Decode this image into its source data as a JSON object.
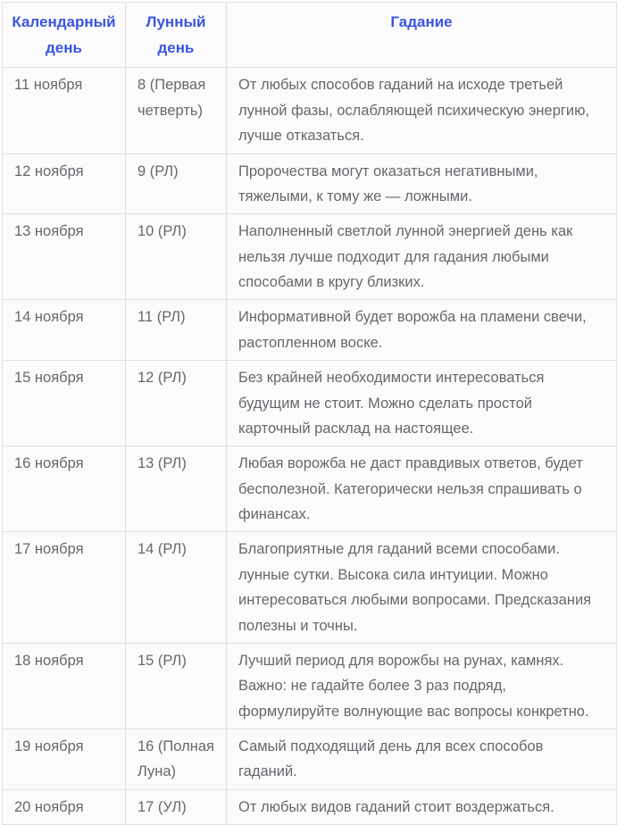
{
  "table": {
    "headers": {
      "calendar_day": "Календарный день",
      "moon_day": "Лунный день",
      "divination": "Гадание"
    },
    "rows": [
      {
        "date": "11 ноября",
        "moon_day": "8 (Первая четверть)",
        "divination": "От любых способов гаданий на исходе третьей лунной фазы, ослабляющей психическую энергию, лучше отказаться."
      },
      {
        "date": "12 ноября",
        "moon_day": "9 (РЛ)",
        "divination": "Пророчества могут оказаться негативными, тяжелыми, к тому же — ложными."
      },
      {
        "date": "13 ноября",
        "moon_day": "10 (РЛ)",
        "divination": "Наполненный светлой лунной энергией день как нельзя лучше подходит для гадания любыми способами в кругу близких."
      },
      {
        "date": "14 ноября",
        "moon_day": "11 (РЛ)",
        "divination": "Информативной будет ворожба на пламени свечи, растопленном воске."
      },
      {
        "date": "15 ноября",
        "moon_day": "12 (РЛ)",
        "divination": "Без крайней необходимости интересоваться будущим не стоит. Можно сделать простой карточный расклад на настоящее."
      },
      {
        "date": "16 ноября",
        "moon_day": "13 (РЛ)",
        "divination": "Любая ворожба не даст правдивых ответов, будет бесполезной. Категорически нельзя спрашивать о финансах."
      },
      {
        "date": "17 ноября",
        "moon_day": "14 (РЛ)",
        "divination": "Благоприятные для гаданий всеми способами. лунные сутки. Высока сила интуиции. Можно интересоваться любыми вопросами. Предсказания полезны и точны."
      },
      {
        "date": "18 ноября",
        "moon_day": "15 (РЛ)",
        "divination": "Лучший период для ворожбы на рунах, камнях. Важно: не гадайте более 3 раз подряд, формулируйте волнующие вас вопросы конкретно."
      },
      {
        "date": "19 ноября",
        "moon_day": "16 (Полная Луна)",
        "divination": "Самый подходящий день для всех способов гаданий."
      },
      {
        "date": "20 ноября",
        "moon_day": "17 (УЛ)",
        "divination": "От любых видов гаданий стоит воздержаться."
      }
    ]
  },
  "colors": {
    "header_text": "#3c55e0",
    "body_text": "#65686d",
    "border": "#e0e0e0",
    "cell_bg": "#fbfbfb",
    "page_bg": "#ffffff"
  }
}
